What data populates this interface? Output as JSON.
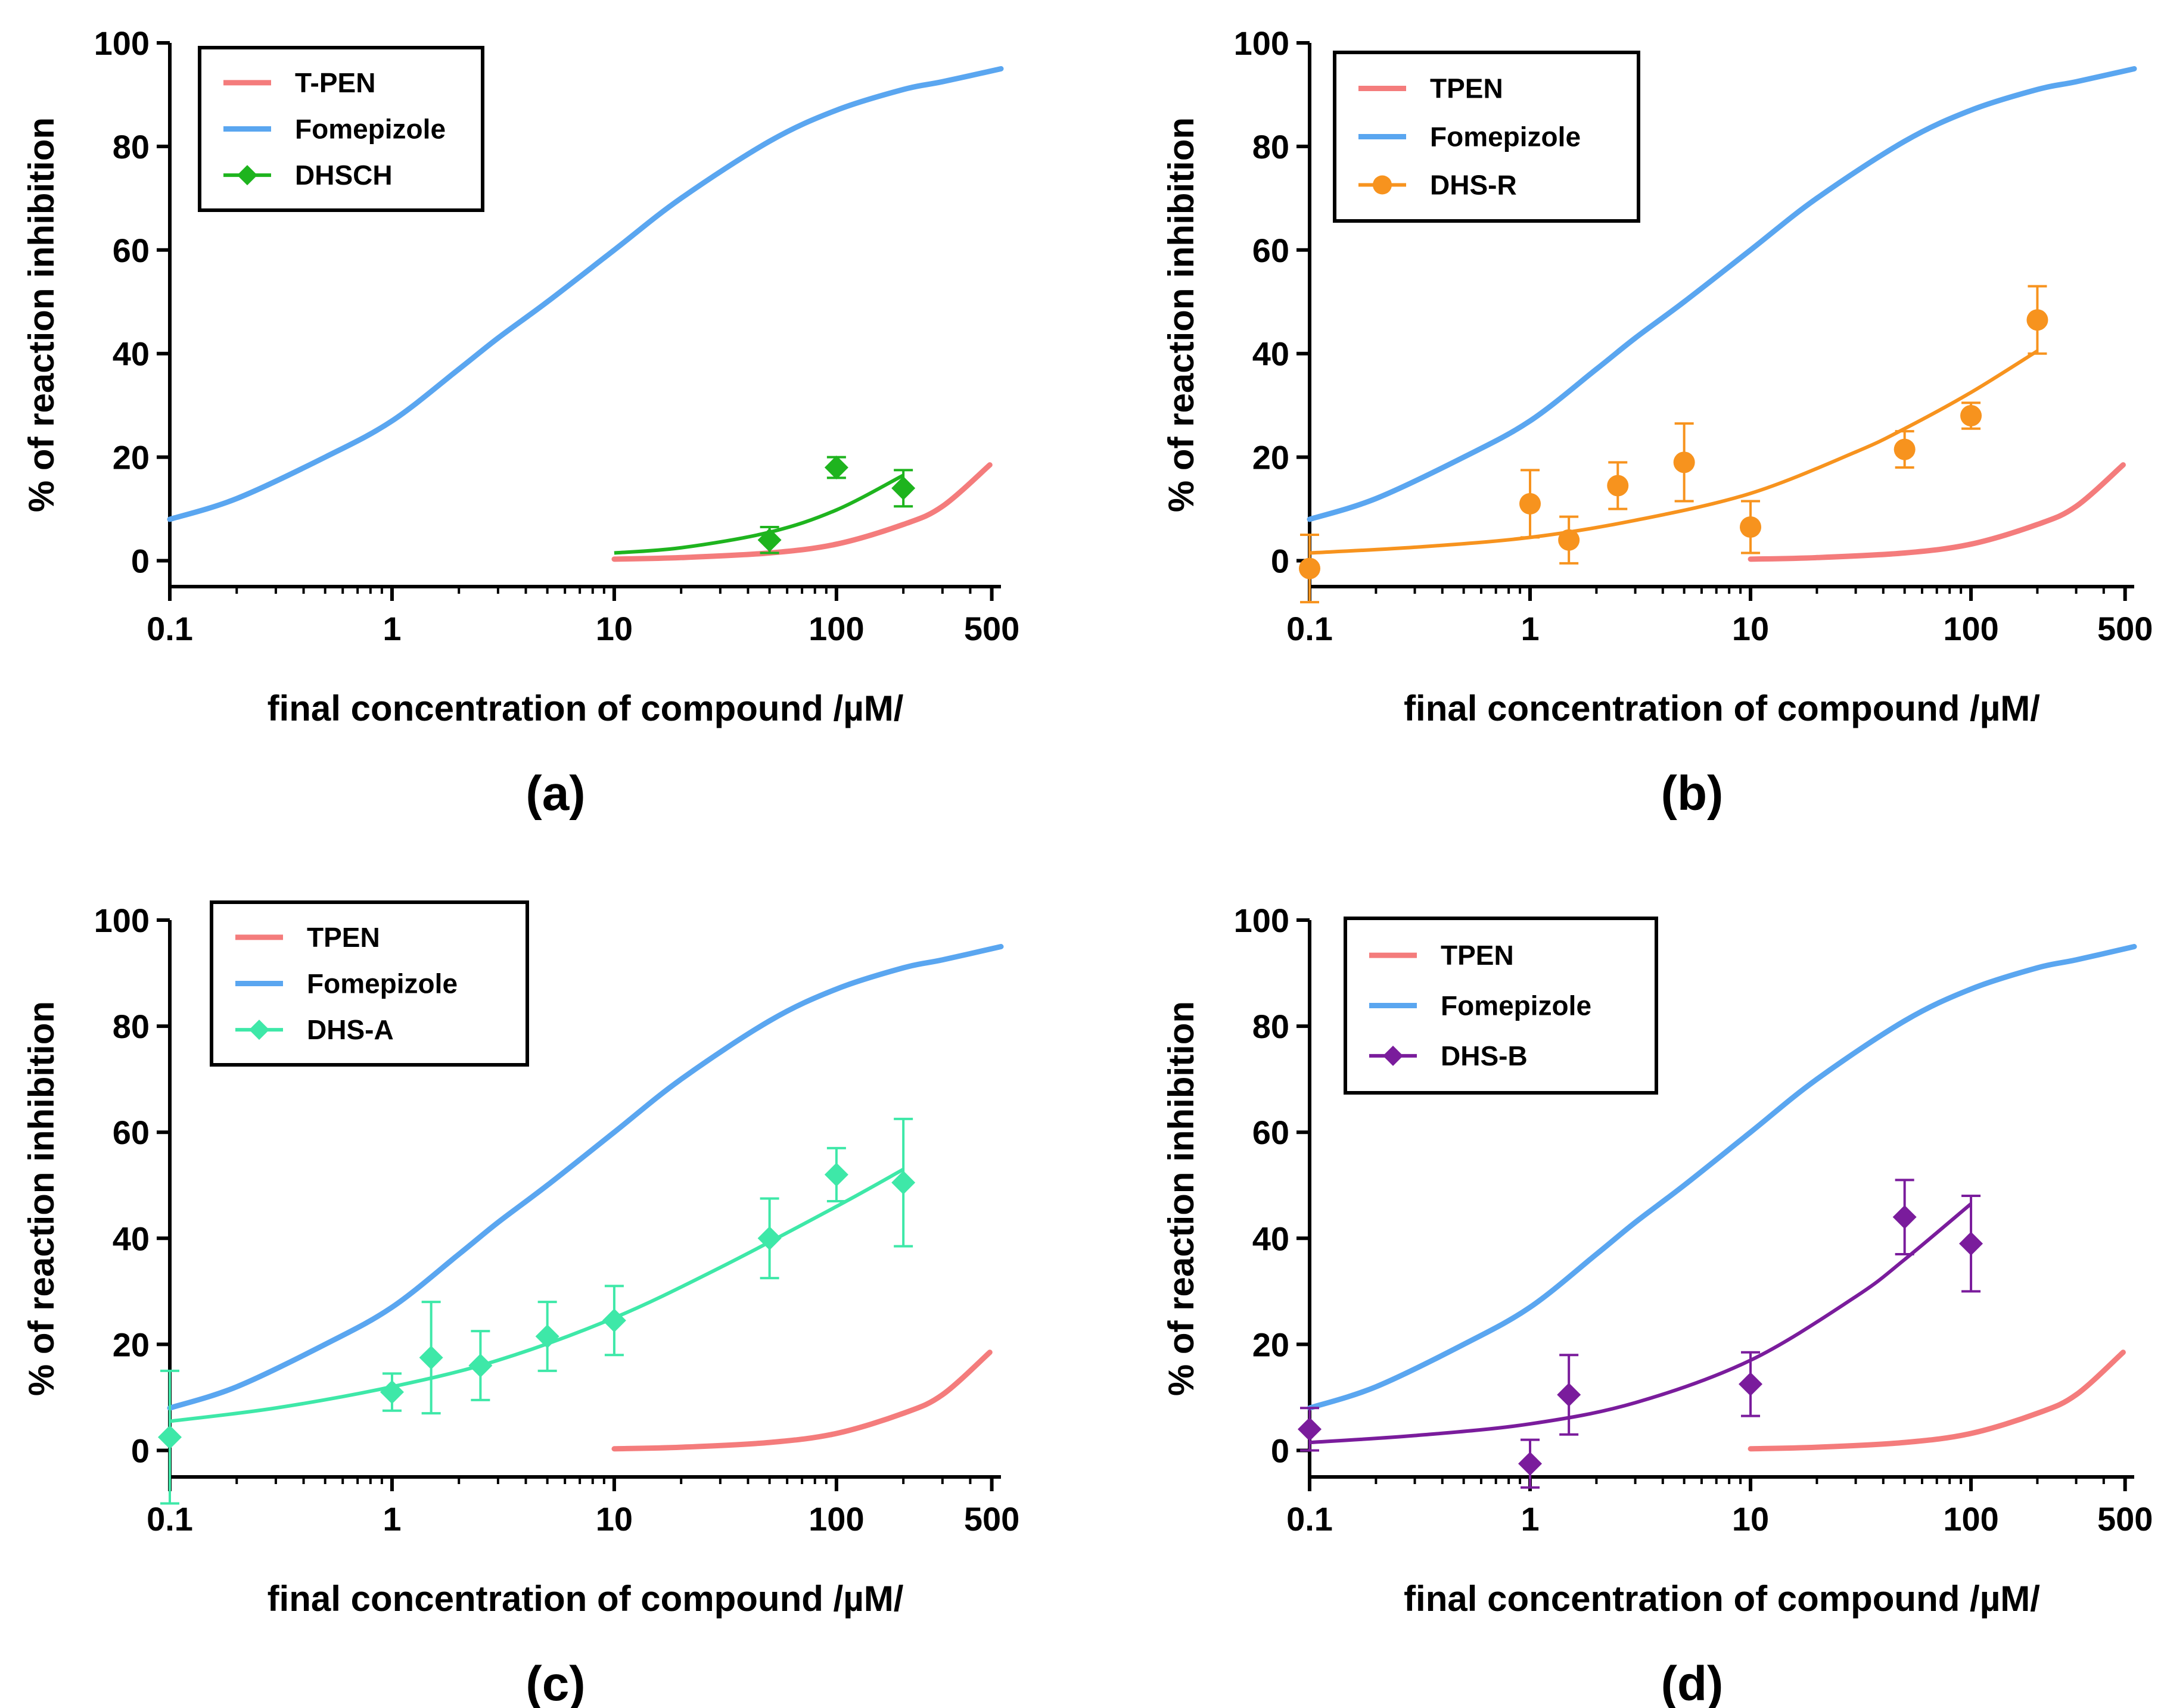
{
  "figure": {
    "xlabel": "final concentration of compound /µM/",
    "ylabel": "% of reaction inhibition",
    "x_ticks": [
      "0.1",
      "1",
      "10",
      "100",
      "500"
    ],
    "y_ticks": [
      "0",
      "20",
      "40",
      "60",
      "80",
      "100"
    ]
  },
  "chart_data": [
    {
      "type": "line",
      "panel": "(a)",
      "xscale": "log",
      "xlim": [
        0.1,
        550
      ],
      "ylim": [
        -5,
        100
      ],
      "legend_position": "top-left",
      "series": [
        {
          "name": "T-PEN",
          "color": "#f47c7c",
          "kind": "curve",
          "x": [
            10,
            20,
            50,
            100,
            200,
            300,
            490
          ],
          "y": [
            0.3,
            0.6,
            1.5,
            3.2,
            7.0,
            10.5,
            18.5
          ]
        },
        {
          "name": "Fomepizole",
          "color": "#5aa6f0",
          "kind": "curve",
          "x": [
            0.1,
            0.2,
            0.5,
            1,
            2,
            3,
            5,
            10,
            20,
            50,
            100,
            200,
            300,
            550
          ],
          "y": [
            8,
            12,
            20,
            27,
            37,
            43,
            50,
            60,
            70,
            81,
            87,
            91,
            92.5,
            95
          ]
        },
        {
          "name": "DHSCH",
          "color": "#1eb41e",
          "kind": "points",
          "marker": "diamond",
          "points": [
            {
              "x": 50,
              "y": 4,
              "err": 2.5
            },
            {
              "x": 100,
              "y": 18,
              "err": 2
            },
            {
              "x": 200,
              "y": 14,
              "err": 3.5
            }
          ],
          "fit": {
            "x": [
              10,
              20,
              50,
              100,
              200
            ],
            "y": [
              1.5,
              2.5,
              5.5,
              9.8,
              16.5
            ]
          }
        }
      ]
    },
    {
      "type": "line",
      "panel": "(b)",
      "xscale": "log",
      "xlim": [
        0.1,
        550
      ],
      "ylim": [
        -5,
        100
      ],
      "legend_position": "top-left",
      "series": [
        {
          "name": "TPEN",
          "color": "#f47c7c",
          "kind": "curve",
          "x": [
            10,
            20,
            50,
            100,
            200,
            300,
            490
          ],
          "y": [
            0.3,
            0.6,
            1.5,
            3.2,
            7.0,
            10.5,
            18.5
          ]
        },
        {
          "name": "Fomepizole",
          "color": "#5aa6f0",
          "kind": "curve",
          "x": [
            0.1,
            0.2,
            0.5,
            1,
            2,
            3,
            5,
            10,
            20,
            50,
            100,
            200,
            300,
            550
          ],
          "y": [
            8,
            12,
            20,
            27,
            37,
            43,
            50,
            60,
            70,
            81,
            87,
            91,
            92.5,
            95
          ]
        },
        {
          "name": "DHS-R",
          "color": "#f7931e",
          "kind": "points",
          "marker": "circle",
          "points": [
            {
              "x": 0.1,
              "y": -1.5,
              "err": 6.5
            },
            {
              "x": 1,
              "y": 11,
              "err": 6.5
            },
            {
              "x": 1.5,
              "y": 4,
              "err": 4.5
            },
            {
              "x": 2.5,
              "y": 14.5,
              "err": 4.5
            },
            {
              "x": 5,
              "y": 19,
              "err": 7.5
            },
            {
              "x": 10,
              "y": 6.5,
              "err": 5
            },
            {
              "x": 50,
              "y": 21.5,
              "err": 3.5
            },
            {
              "x": 100,
              "y": 28,
              "err": 2.5
            },
            {
              "x": 200,
              "y": 46.5,
              "err": 6.5
            }
          ],
          "fit": {
            "x": [
              0.1,
              0.3,
              1,
              3,
              10,
              30,
              50,
              100,
              200
            ],
            "y": [
              1.5,
              2.6,
              4.5,
              7.8,
              13,
              21,
              25.5,
              32.5,
              40.5
            ]
          }
        }
      ]
    },
    {
      "type": "line",
      "panel": "(c)",
      "xscale": "log",
      "xlim": [
        0.1,
        550
      ],
      "ylim": [
        -5,
        100
      ],
      "legend_position": "top-left",
      "series": [
        {
          "name": "TPEN",
          "color": "#f47c7c",
          "kind": "curve",
          "x": [
            10,
            20,
            50,
            100,
            200,
            300,
            490
          ],
          "y": [
            0.3,
            0.6,
            1.5,
            3.2,
            7.0,
            10.5,
            18.5
          ]
        },
        {
          "name": "Fomepizole",
          "color": "#5aa6f0",
          "kind": "curve",
          "x": [
            0.1,
            0.2,
            0.5,
            1,
            2,
            3,
            5,
            10,
            20,
            50,
            100,
            200,
            300,
            550
          ],
          "y": [
            8,
            12,
            20,
            27,
            37,
            43,
            50,
            60,
            70,
            81,
            87,
            91,
            92.5,
            95
          ]
        },
        {
          "name": "DHS-A",
          "color": "#3ee8a8",
          "kind": "points",
          "marker": "diamond",
          "points": [
            {
              "x": 0.1,
              "y": 2.5,
              "err": 12.5
            },
            {
              "x": 1,
              "y": 11,
              "err": 3.5
            },
            {
              "x": 1.5,
              "y": 17.5,
              "err": 10.5
            },
            {
              "x": 2.5,
              "y": 16,
              "err": 6.5
            },
            {
              "x": 5,
              "y": 21.5,
              "err": 6.5
            },
            {
              "x": 10,
              "y": 24.5,
              "err": 6.5
            },
            {
              "x": 50,
              "y": 40,
              "err": 7.5
            },
            {
              "x": 100,
              "y": 52,
              "err": 5
            },
            {
              "x": 200,
              "y": 50.5,
              "err": 12
            }
          ],
          "fit": {
            "x": [
              0.1,
              0.3,
              1,
              3,
              10,
              30,
              100,
              200
            ],
            "y": [
              5.5,
              8,
              12,
              17,
              25,
              34.5,
              46,
              53
            ]
          }
        }
      ]
    },
    {
      "type": "line",
      "panel": "(d)",
      "xscale": "log",
      "xlim": [
        0.1,
        550
      ],
      "ylim": [
        -5,
        100
      ],
      "legend_position": "top-left",
      "series": [
        {
          "name": "TPEN",
          "color": "#f47c7c",
          "kind": "curve",
          "x": [
            10,
            20,
            50,
            100,
            200,
            300,
            490
          ],
          "y": [
            0.3,
            0.6,
            1.5,
            3.2,
            7.0,
            10.5,
            18.5
          ]
        },
        {
          "name": "Fomepizole",
          "color": "#5aa6f0",
          "kind": "curve",
          "x": [
            0.1,
            0.2,
            0.5,
            1,
            2,
            3,
            5,
            10,
            20,
            50,
            100,
            200,
            300,
            550
          ],
          "y": [
            8,
            12,
            20,
            27,
            37,
            43,
            50,
            60,
            70,
            81,
            87,
            91,
            92.5,
            95
          ]
        },
        {
          "name": "DHS-B",
          "color": "#7a1c9c",
          "kind": "points",
          "marker": "diamond",
          "points": [
            {
              "x": 0.1,
              "y": 4,
              "err": 4
            },
            {
              "x": 1,
              "y": -2.5,
              "err": 4.5
            },
            {
              "x": 1.5,
              "y": 10.5,
              "err": 7.5
            },
            {
              "x": 10,
              "y": 12.5,
              "err": 6
            },
            {
              "x": 50,
              "y": 44,
              "err": 7
            },
            {
              "x": 100,
              "y": 39,
              "err": 9
            }
          ],
          "fit": {
            "x": [
              0.1,
              0.3,
              1,
              3,
              10,
              30,
              50,
              100
            ],
            "y": [
              1.5,
              2.8,
              5,
              9,
              17,
              29,
              36,
              46.5
            ]
          }
        }
      ]
    }
  ]
}
